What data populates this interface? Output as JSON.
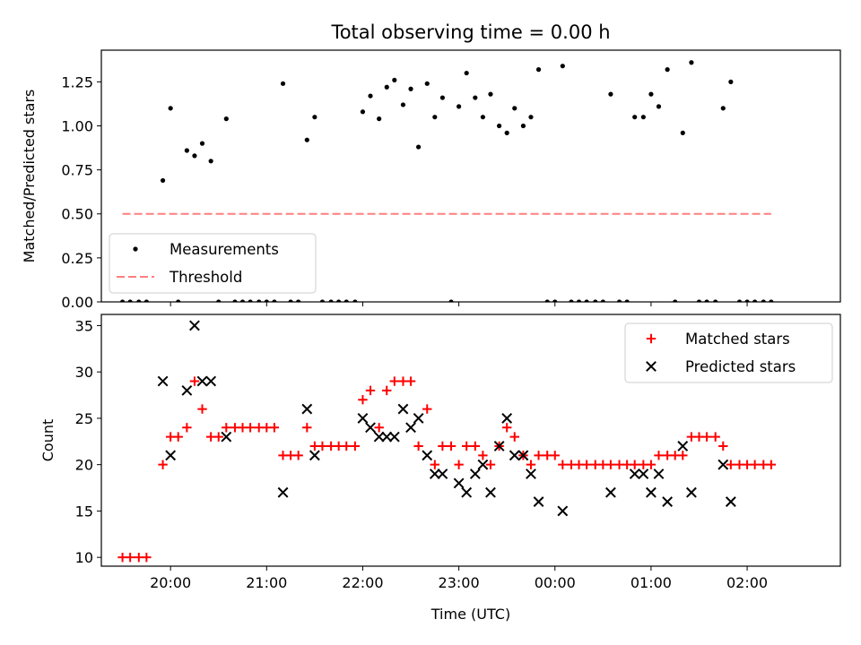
{
  "figure": {
    "title": "Total observing time = 0.00 h"
  },
  "chart_data": [
    {
      "type": "scatter",
      "ylabel": "Matched/Predicted stars",
      "xlim": [
        19.28,
        26.97
      ],
      "ylim": [
        0,
        1.43
      ],
      "yticks": [
        0.0,
        0.25,
        0.5,
        0.75,
        1.0,
        1.25
      ],
      "ytick_labels": [
        "0.00",
        "0.25",
        "0.50",
        "0.75",
        "1.00",
        "1.25"
      ],
      "legend": {
        "position": "bottom-left",
        "entries": [
          "Measurements",
          "Threshold"
        ]
      },
      "threshold": {
        "name": "Threshold",
        "value": 0.5,
        "x": [
          19.5,
          26.25
        ],
        "color": "#ff7f7f"
      },
      "series": [
        {
          "name": "Measurements",
          "marker": "dot",
          "color": "#000000",
          "points": [
            [
              19.5,
              0
            ],
            [
              19.58,
              0
            ],
            [
              19.67,
              0
            ],
            [
              19.75,
              0
            ],
            [
              19.92,
              0.69
            ],
            [
              20.0,
              1.1
            ],
            [
              20.08,
              0
            ],
            [
              20.17,
              0.86
            ],
            [
              20.25,
              0.83
            ],
            [
              20.33,
              0.9
            ],
            [
              20.42,
              0.8
            ],
            [
              20.5,
              0
            ],
            [
              20.58,
              1.04
            ],
            [
              20.67,
              0
            ],
            [
              20.75,
              0
            ],
            [
              20.83,
              0
            ],
            [
              20.92,
              0
            ],
            [
              21.0,
              0
            ],
            [
              21.08,
              0
            ],
            [
              21.17,
              1.24
            ],
            [
              21.25,
              0
            ],
            [
              21.33,
              0
            ],
            [
              21.42,
              0.92
            ],
            [
              21.5,
              1.05
            ],
            [
              21.58,
              0
            ],
            [
              21.67,
              0
            ],
            [
              21.75,
              0
            ],
            [
              21.83,
              0
            ],
            [
              21.92,
              0
            ],
            [
              22.0,
              1.08
            ],
            [
              22.08,
              1.17
            ],
            [
              22.17,
              1.04
            ],
            [
              22.25,
              1.22
            ],
            [
              22.33,
              1.26
            ],
            [
              22.42,
              1.12
            ],
            [
              22.5,
              1.21
            ],
            [
              22.58,
              0.88
            ],
            [
              22.67,
              1.24
            ],
            [
              22.75,
              1.05
            ],
            [
              22.83,
              1.16
            ],
            [
              22.92,
              0
            ],
            [
              23.0,
              1.11
            ],
            [
              23.08,
              1.3
            ],
            [
              23.17,
              1.16
            ],
            [
              23.25,
              1.05
            ],
            [
              23.33,
              1.18
            ],
            [
              23.42,
              1.0
            ],
            [
              23.5,
              0.96
            ],
            [
              23.58,
              1.1
            ],
            [
              23.67,
              1.0
            ],
            [
              23.75,
              1.05
            ],
            [
              23.83,
              1.32
            ],
            [
              23.92,
              0
            ],
            [
              24.0,
              0
            ],
            [
              24.08,
              1.34
            ],
            [
              24.17,
              0
            ],
            [
              24.25,
              0
            ],
            [
              24.33,
              0
            ],
            [
              24.42,
              0
            ],
            [
              24.5,
              0
            ],
            [
              24.58,
              1.18
            ],
            [
              24.67,
              0
            ],
            [
              24.75,
              0
            ],
            [
              24.83,
              1.05
            ],
            [
              24.92,
              1.05
            ],
            [
              25.0,
              1.18
            ],
            [
              25.08,
              1.11
            ],
            [
              25.17,
              1.32
            ],
            [
              25.25,
              0
            ],
            [
              25.33,
              0.96
            ],
            [
              25.42,
              1.36
            ],
            [
              25.5,
              0
            ],
            [
              25.58,
              0
            ],
            [
              25.67,
              0
            ],
            [
              25.75,
              1.1
            ],
            [
              25.83,
              1.25
            ],
            [
              25.92,
              0
            ],
            [
              26.0,
              0
            ],
            [
              26.08,
              0
            ],
            [
              26.17,
              0
            ],
            [
              26.25,
              0
            ]
          ]
        }
      ]
    },
    {
      "type": "scatter",
      "xlabel": "Time (UTC)",
      "ylabel": "Count",
      "xlim": [
        19.28,
        26.97
      ],
      "ylim": [
        9.05,
        36.2
      ],
      "yticks": [
        10,
        15,
        20,
        25,
        30,
        35
      ],
      "ytick_labels": [
        "10",
        "15",
        "20",
        "25",
        "30",
        "35"
      ],
      "xticks": [
        20,
        21,
        22,
        23,
        24,
        25,
        26
      ],
      "xtick_labels": [
        "20:00",
        "21:00",
        "22:00",
        "23:00",
        "00:00",
        "01:00",
        "02:00"
      ],
      "legend": {
        "position": "top-right",
        "entries": [
          "Matched stars",
          "Predicted stars"
        ]
      },
      "series": [
        {
          "name": "Matched stars",
          "marker": "plus",
          "color": "#ff0000",
          "points": [
            [
              19.5,
              10
            ],
            [
              19.58,
              10
            ],
            [
              19.67,
              10
            ],
            [
              19.75,
              10
            ],
            [
              19.92,
              20
            ],
            [
              20.0,
              23
            ],
            [
              20.08,
              23
            ],
            [
              20.17,
              24
            ],
            [
              20.25,
              29
            ],
            [
              20.33,
              26
            ],
            [
              20.42,
              23
            ],
            [
              20.5,
              23
            ],
            [
              20.58,
              24
            ],
            [
              20.67,
              24
            ],
            [
              20.75,
              24
            ],
            [
              20.83,
              24
            ],
            [
              20.92,
              24
            ],
            [
              21.0,
              24
            ],
            [
              21.08,
              24
            ],
            [
              21.17,
              21
            ],
            [
              21.25,
              21
            ],
            [
              21.33,
              21
            ],
            [
              21.42,
              24
            ],
            [
              21.5,
              22
            ],
            [
              21.58,
              22
            ],
            [
              21.67,
              22
            ],
            [
              21.75,
              22
            ],
            [
              21.83,
              22
            ],
            [
              21.92,
              22
            ],
            [
              22.0,
              27
            ],
            [
              22.08,
              28
            ],
            [
              22.17,
              24
            ],
            [
              22.25,
              28
            ],
            [
              22.33,
              29
            ],
            [
              22.42,
              29
            ],
            [
              22.5,
              29
            ],
            [
              22.58,
              22
            ],
            [
              22.67,
              26
            ],
            [
              22.75,
              20
            ],
            [
              22.83,
              22
            ],
            [
              22.92,
              22
            ],
            [
              23.0,
              20
            ],
            [
              23.08,
              22
            ],
            [
              23.17,
              22
            ],
            [
              23.25,
              21
            ],
            [
              23.33,
              20
            ],
            [
              23.42,
              22
            ],
            [
              23.5,
              24
            ],
            [
              23.58,
              23
            ],
            [
              23.67,
              21
            ],
            [
              23.75,
              20
            ],
            [
              23.83,
              21
            ],
            [
              23.92,
              21
            ],
            [
              24.0,
              21
            ],
            [
              24.08,
              20
            ],
            [
              24.17,
              20
            ],
            [
              24.25,
              20
            ],
            [
              24.33,
              20
            ],
            [
              24.42,
              20
            ],
            [
              24.5,
              20
            ],
            [
              24.58,
              20
            ],
            [
              24.67,
              20
            ],
            [
              24.75,
              20
            ],
            [
              24.83,
              20
            ],
            [
              24.92,
              20
            ],
            [
              25.0,
              20
            ],
            [
              25.08,
              21
            ],
            [
              25.17,
              21
            ],
            [
              25.25,
              21
            ],
            [
              25.33,
              21
            ],
            [
              25.42,
              23
            ],
            [
              25.5,
              23
            ],
            [
              25.58,
              23
            ],
            [
              25.67,
              23
            ],
            [
              25.75,
              22
            ],
            [
              25.83,
              20
            ],
            [
              25.92,
              20
            ],
            [
              26.0,
              20
            ],
            [
              26.08,
              20
            ],
            [
              26.17,
              20
            ],
            [
              26.25,
              20
            ]
          ]
        },
        {
          "name": "Predicted stars",
          "marker": "cross",
          "color": "#000000",
          "points": [
            [
              19.92,
              29
            ],
            [
              20.0,
              21
            ],
            [
              20.17,
              28
            ],
            [
              20.25,
              35
            ],
            [
              20.33,
              29
            ],
            [
              20.42,
              29
            ],
            [
              20.58,
              23
            ],
            [
              21.17,
              17
            ],
            [
              21.42,
              26
            ],
            [
              21.5,
              21
            ],
            [
              22.0,
              25
            ],
            [
              22.08,
              24
            ],
            [
              22.17,
              23
            ],
            [
              22.25,
              23
            ],
            [
              22.33,
              23
            ],
            [
              22.42,
              26
            ],
            [
              22.5,
              24
            ],
            [
              22.58,
              25
            ],
            [
              22.67,
              21
            ],
            [
              22.75,
              19
            ],
            [
              22.83,
              19
            ],
            [
              23.0,
              18
            ],
            [
              23.08,
              17
            ],
            [
              23.17,
              19
            ],
            [
              23.25,
              20
            ],
            [
              23.33,
              17
            ],
            [
              23.42,
              22
            ],
            [
              23.5,
              25
            ],
            [
              23.58,
              21
            ],
            [
              23.67,
              21
            ],
            [
              23.75,
              19
            ],
            [
              23.83,
              16
            ],
            [
              24.08,
              15
            ],
            [
              24.58,
              17
            ],
            [
              24.83,
              19
            ],
            [
              24.92,
              19
            ],
            [
              25.0,
              17
            ],
            [
              25.08,
              19
            ],
            [
              25.17,
              16
            ],
            [
              25.33,
              22
            ],
            [
              25.42,
              17
            ],
            [
              25.75,
              20
            ],
            [
              25.83,
              16
            ]
          ]
        }
      ]
    }
  ]
}
